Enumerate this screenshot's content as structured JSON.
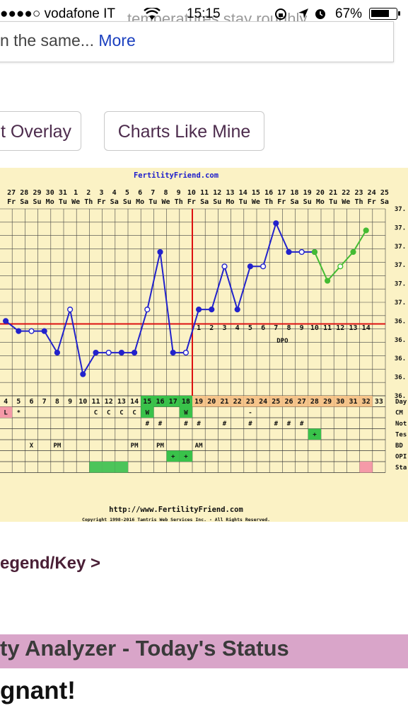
{
  "status_bar": {
    "carrier": "●●●●○ vodafone IT",
    "time": "15:15",
    "battery": "67%"
  },
  "description": {
    "faded_line": "temperatures stay roughly",
    "text": "n the same...",
    "more_link": "More"
  },
  "buttons": {
    "overlay": "t Overlay",
    "charts_like_mine": "Charts Like Mine"
  },
  "chart_data": {
    "type": "line",
    "title": "FertilityFriend.com",
    "dates": [
      "27",
      "28",
      "29",
      "30",
      "31",
      "1",
      "2",
      "3",
      "4",
      "5",
      "6",
      "7",
      "8",
      "9",
      "10",
      "11",
      "12",
      "13",
      "14",
      "15",
      "16",
      "17",
      "18",
      "19",
      "20",
      "21",
      "22",
      "23",
      "24",
      "25"
    ],
    "weekdays": [
      "Fr",
      "Sa",
      "Su",
      "Mo",
      "Tu",
      "We",
      "Th",
      "Fr",
      "Sa",
      "Su",
      "Mo",
      "Tu",
      "We",
      "Th",
      "Fr",
      "Sa",
      "Su",
      "Mo",
      "Tu",
      "We",
      "Th",
      "Fr",
      "Sa",
      "Su",
      "Mo",
      "Tu",
      "We",
      "Th",
      "Fr",
      "Sa"
    ],
    "cycle_days": [
      "4",
      "5",
      "6",
      "7",
      "8",
      "9",
      "10",
      "11",
      "12",
      "13",
      "14",
      "15",
      "16",
      "17",
      "18",
      "19",
      "20",
      "21",
      "22",
      "23",
      "24",
      "25",
      "26",
      "27",
      "28",
      "29",
      "30",
      "31",
      "32",
      "33"
    ],
    "y_tick_labels": [
      "37.",
      "37.",
      "37.",
      "37.",
      "37.",
      "37.",
      "36.",
      "36.",
      "36.",
      "36.",
      "36."
    ],
    "right_labels": [
      "Day",
      "CM",
      "Not",
      "Tes",
      "BD",
      "OPI",
      "Sta"
    ],
    "coverline": 36.5,
    "ovulation_cycle_day": 18,
    "dpo_labels": [
      "1",
      "2",
      "3",
      "4",
      "5",
      "6",
      "7",
      "8",
      "9",
      "10",
      "11",
      "12",
      "13",
      "14"
    ],
    "dpo_text": "DPO",
    "pre_pregnancy_series": {
      "cycle_days": [
        4,
        5,
        6,
        7,
        8,
        9,
        10,
        11,
        12,
        13,
        14,
        15,
        16,
        17,
        18,
        19,
        20,
        21,
        22,
        23,
        24,
        25,
        26,
        27,
        28
      ],
      "values": [
        36.52,
        36.45,
        36.45,
        36.45,
        36.3,
        36.6,
        36.15,
        36.3,
        36.3,
        36.3,
        36.3,
        36.6,
        37.0,
        36.3,
        36.3,
        36.6,
        36.6,
        36.9,
        36.6,
        36.9,
        36.9,
        37.2,
        37.0,
        37.0,
        37.0
      ],
      "color": "#2222cc"
    },
    "pregnancy_series": {
      "cycle_days": [
        28,
        29,
        30,
        31,
        32
      ],
      "values": [
        37.0,
        36.8,
        36.9,
        37.0,
        37.15
      ],
      "color": "#44bb33"
    },
    "cm_row": {
      "4": "L",
      "5": "*",
      "11": "C",
      "12": "C",
      "13": "C",
      "14": "C",
      "15": "W",
      "18": "W",
      "23": "-"
    },
    "notes_row": {
      "15": "#",
      "16": "#",
      "18": "#",
      "19": "#",
      "21": "#",
      "23": "#",
      "25": "#",
      "26": "#",
      "27": "#"
    },
    "test_row": {
      "28": "+"
    },
    "bd_row": {
      "6": "X",
      "8": "PM",
      "14": "PM",
      "16": "PM",
      "19": "AM"
    },
    "opk_row": {
      "17": "+",
      "18": "+"
    },
    "green_highlight_days": [
      "15",
      "16",
      "17",
      "18"
    ],
    "orange_highlight_days": [
      "19",
      "20",
      "21",
      "22",
      "23",
      "24",
      "25",
      "26",
      "27",
      "28",
      "29",
      "30",
      "31",
      "32"
    ],
    "footer_url": "http://www.FertilityFriend.com",
    "copyright": "Copyright 1998-2016 Tamtris Web Services Inc. - All Rights Reserved."
  },
  "legend_link": "egend/Key >",
  "analyzer": {
    "title": "ty Analyzer - Today's Status",
    "headline": "gnant!"
  }
}
